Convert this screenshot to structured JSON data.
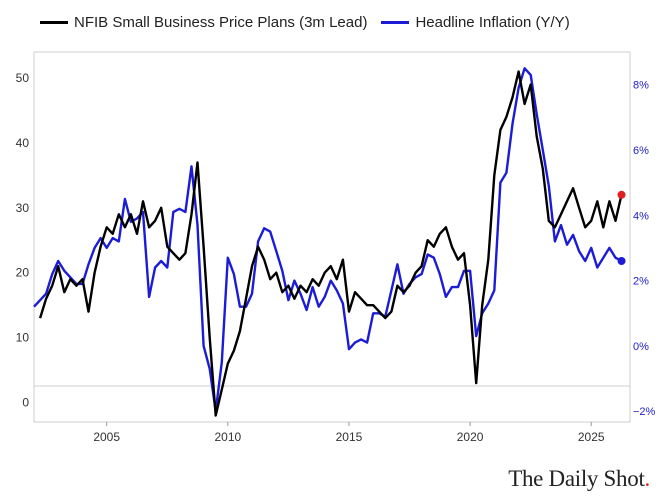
{
  "chart_data": {
    "type": "line",
    "legend": "top",
    "series": [
      {
        "name": "NFIB Small Business Price Plans (3m Lead)",
        "axis": "left",
        "color": "#000000",
        "points": [
          [
            2002.25,
            13
          ],
          [
            2002.5,
            16
          ],
          [
            2002.75,
            18
          ],
          [
            2003.0,
            21
          ],
          [
            2003.25,
            17
          ],
          [
            2003.5,
            19
          ],
          [
            2003.75,
            18
          ],
          [
            2004.0,
            19
          ],
          [
            2004.25,
            14
          ],
          [
            2004.5,
            20
          ],
          [
            2004.75,
            24
          ],
          [
            2005.0,
            27
          ],
          [
            2005.25,
            26
          ],
          [
            2005.5,
            29
          ],
          [
            2005.75,
            27
          ],
          [
            2006.0,
            29
          ],
          [
            2006.25,
            26
          ],
          [
            2006.5,
            31
          ],
          [
            2006.75,
            27
          ],
          [
            2007.0,
            28
          ],
          [
            2007.25,
            30
          ],
          [
            2007.5,
            24
          ],
          [
            2007.75,
            23
          ],
          [
            2008.0,
            22
          ],
          [
            2008.25,
            23
          ],
          [
            2008.5,
            29
          ],
          [
            2008.75,
            37
          ],
          [
            2009.0,
            24
          ],
          [
            2009.25,
            10
          ],
          [
            2009.5,
            -2
          ],
          [
            2009.75,
            2
          ],
          [
            2010.0,
            6
          ],
          [
            2010.25,
            8
          ],
          [
            2010.5,
            11
          ],
          [
            2010.75,
            16
          ],
          [
            2011.0,
            21
          ],
          [
            2011.25,
            24
          ],
          [
            2011.5,
            22
          ],
          [
            2011.75,
            19
          ],
          [
            2012.0,
            20
          ],
          [
            2012.25,
            17
          ],
          [
            2012.5,
            18
          ],
          [
            2012.75,
            16
          ],
          [
            2013.0,
            18
          ],
          [
            2013.25,
            17
          ],
          [
            2013.5,
            19
          ],
          [
            2013.75,
            18
          ],
          [
            2014.0,
            20
          ],
          [
            2014.25,
            21
          ],
          [
            2014.5,
            19
          ],
          [
            2014.75,
            22
          ],
          [
            2015.0,
            14
          ],
          [
            2015.25,
            17
          ],
          [
            2015.5,
            16
          ],
          [
            2015.75,
            15
          ],
          [
            2016.0,
            15
          ],
          [
            2016.25,
            14
          ],
          [
            2016.5,
            13
          ],
          [
            2016.75,
            14
          ],
          [
            2017.0,
            18
          ],
          [
            2017.25,
            17
          ],
          [
            2017.5,
            18
          ],
          [
            2017.75,
            20
          ],
          [
            2018.0,
            21
          ],
          [
            2018.25,
            25
          ],
          [
            2018.5,
            24
          ],
          [
            2018.75,
            26
          ],
          [
            2019.0,
            27
          ],
          [
            2019.25,
            24
          ],
          [
            2019.5,
            22
          ],
          [
            2019.75,
            23
          ],
          [
            2020.0,
            15
          ],
          [
            2020.25,
            3
          ],
          [
            2020.5,
            15
          ],
          [
            2020.75,
            22
          ],
          [
            2021.0,
            35
          ],
          [
            2021.25,
            42
          ],
          [
            2021.5,
            44
          ],
          [
            2021.75,
            47
          ],
          [
            2022.0,
            51
          ],
          [
            2022.25,
            46
          ],
          [
            2022.5,
            49
          ],
          [
            2022.75,
            41
          ],
          [
            2023.0,
            36
          ],
          [
            2023.25,
            28
          ],
          [
            2023.5,
            27
          ],
          [
            2023.75,
            29
          ],
          [
            2024.0,
            31
          ],
          [
            2024.25,
            33
          ],
          [
            2024.5,
            30
          ],
          [
            2024.75,
            27
          ],
          [
            2025.0,
            28
          ],
          [
            2025.25,
            31
          ],
          [
            2025.5,
            27
          ],
          [
            2025.75,
            31
          ],
          [
            2026.0,
            28
          ],
          [
            2026.25,
            32
          ]
        ]
      },
      {
        "name": "Headline Inflation (Y/Y)",
        "axis": "right",
        "color": "#1c1cd6",
        "points": [
          [
            2002.0,
            1.2
          ],
          [
            2002.25,
            1.4
          ],
          [
            2002.5,
            1.6
          ],
          [
            2002.75,
            2.2
          ],
          [
            2003.0,
            2.6
          ],
          [
            2003.25,
            2.3
          ],
          [
            2003.5,
            2.1
          ],
          [
            2003.75,
            1.9
          ],
          [
            2004.0,
            1.9
          ],
          [
            2004.25,
            2.5
          ],
          [
            2004.5,
            3.0
          ],
          [
            2004.75,
            3.3
          ],
          [
            2005.0,
            3.0
          ],
          [
            2005.25,
            3.3
          ],
          [
            2005.5,
            3.2
          ],
          [
            2005.75,
            4.5
          ],
          [
            2006.0,
            3.8
          ],
          [
            2006.25,
            3.9
          ],
          [
            2006.5,
            4.1
          ],
          [
            2006.75,
            1.5
          ],
          [
            2007.0,
            2.4
          ],
          [
            2007.25,
            2.6
          ],
          [
            2007.5,
            2.4
          ],
          [
            2007.75,
            4.1
          ],
          [
            2008.0,
            4.2
          ],
          [
            2008.25,
            4.1
          ],
          [
            2008.5,
            5.5
          ],
          [
            2008.75,
            3.7
          ],
          [
            2009.0,
            0.0
          ],
          [
            2009.25,
            -0.7
          ],
          [
            2009.5,
            -2.0
          ],
          [
            2009.75,
            -0.5
          ],
          [
            2010.0,
            2.7
          ],
          [
            2010.25,
            2.2
          ],
          [
            2010.5,
            1.2
          ],
          [
            2010.75,
            1.2
          ],
          [
            2011.0,
            1.6
          ],
          [
            2011.25,
            3.2
          ],
          [
            2011.5,
            3.6
          ],
          [
            2011.75,
            3.5
          ],
          [
            2012.0,
            2.9
          ],
          [
            2012.25,
            2.3
          ],
          [
            2012.5,
            1.4
          ],
          [
            2012.75,
            2.0
          ],
          [
            2013.0,
            1.6
          ],
          [
            2013.25,
            1.1
          ],
          [
            2013.5,
            1.8
          ],
          [
            2013.75,
            1.2
          ],
          [
            2014.0,
            1.5
          ],
          [
            2014.25,
            2.0
          ],
          [
            2014.5,
            1.7
          ],
          [
            2014.75,
            1.3
          ],
          [
            2015.0,
            -0.1
          ],
          [
            2015.25,
            0.1
          ],
          [
            2015.5,
            0.2
          ],
          [
            2015.75,
            0.1
          ],
          [
            2016.0,
            1.0
          ],
          [
            2016.25,
            1.0
          ],
          [
            2016.5,
            0.9
          ],
          [
            2016.75,
            1.7
          ],
          [
            2017.0,
            2.5
          ],
          [
            2017.25,
            1.6
          ],
          [
            2017.5,
            1.9
          ],
          [
            2017.75,
            2.1
          ],
          [
            2018.0,
            2.2
          ],
          [
            2018.25,
            2.8
          ],
          [
            2018.5,
            2.7
          ],
          [
            2018.75,
            2.2
          ],
          [
            2019.0,
            1.5
          ],
          [
            2019.25,
            1.8
          ],
          [
            2019.5,
            1.8
          ],
          [
            2019.75,
            2.3
          ],
          [
            2020.0,
            2.3
          ],
          [
            2020.25,
            0.3
          ],
          [
            2020.5,
            1.0
          ],
          [
            2020.75,
            1.3
          ],
          [
            2021.0,
            1.7
          ],
          [
            2021.25,
            5.0
          ],
          [
            2021.5,
            5.3
          ],
          [
            2021.75,
            6.8
          ],
          [
            2022.0,
            7.9
          ],
          [
            2022.25,
            8.5
          ],
          [
            2022.5,
            8.3
          ],
          [
            2022.75,
            7.1
          ],
          [
            2023.0,
            6.0
          ],
          [
            2023.25,
            4.9
          ],
          [
            2023.5,
            3.2
          ],
          [
            2023.75,
            3.7
          ],
          [
            2024.0,
            3.1
          ],
          [
            2024.25,
            3.4
          ],
          [
            2024.5,
            2.9
          ],
          [
            2024.75,
            2.6
          ],
          [
            2025.0,
            3.0
          ],
          [
            2025.25,
            2.4
          ],
          [
            2025.5,
            2.7
          ],
          [
            2025.75,
            3.0
          ],
          [
            2026.0,
            2.7
          ],
          [
            2026.25,
            2.6
          ]
        ]
      }
    ],
    "x_ticks": [
      2005,
      2010,
      2015,
      2020,
      2025
    ],
    "x_tick_labels": [
      "2005",
      "2010",
      "2015",
      "2020",
      "2025"
    ],
    "xlim": [
      2002,
      2026.6
    ],
    "left_axis": {
      "ticks": [
        0,
        10,
        20,
        30,
        40,
        50
      ],
      "tick_labels": [
        "0",
        "10",
        "20",
        "30",
        "40",
        "50"
      ],
      "ylim": [
        -3,
        54
      ]
    },
    "right_axis": {
      "ticks": [
        -2,
        0,
        2,
        4,
        6,
        8
      ],
      "tick_labels": [
        "−2%",
        "0%",
        "2%",
        "4%",
        "6%",
        "8%"
      ],
      "ylim": [
        -2.33,
        9.0
      ],
      "color": "#2020cc"
    },
    "end_markers": [
      {
        "series": 0,
        "color": "#e02020"
      },
      {
        "series": 1,
        "color": "#1c1cd6"
      }
    ]
  },
  "legend": {
    "entries": [
      {
        "label": "NFIB Small Business Price Plans (3m Lead)",
        "color": "#000000"
      },
      {
        "label": "Headline Inflation (Y/Y)",
        "color": "#1c1cd6"
      }
    ]
  },
  "brand": {
    "text": "The Daily Shot",
    "dot": "."
  }
}
